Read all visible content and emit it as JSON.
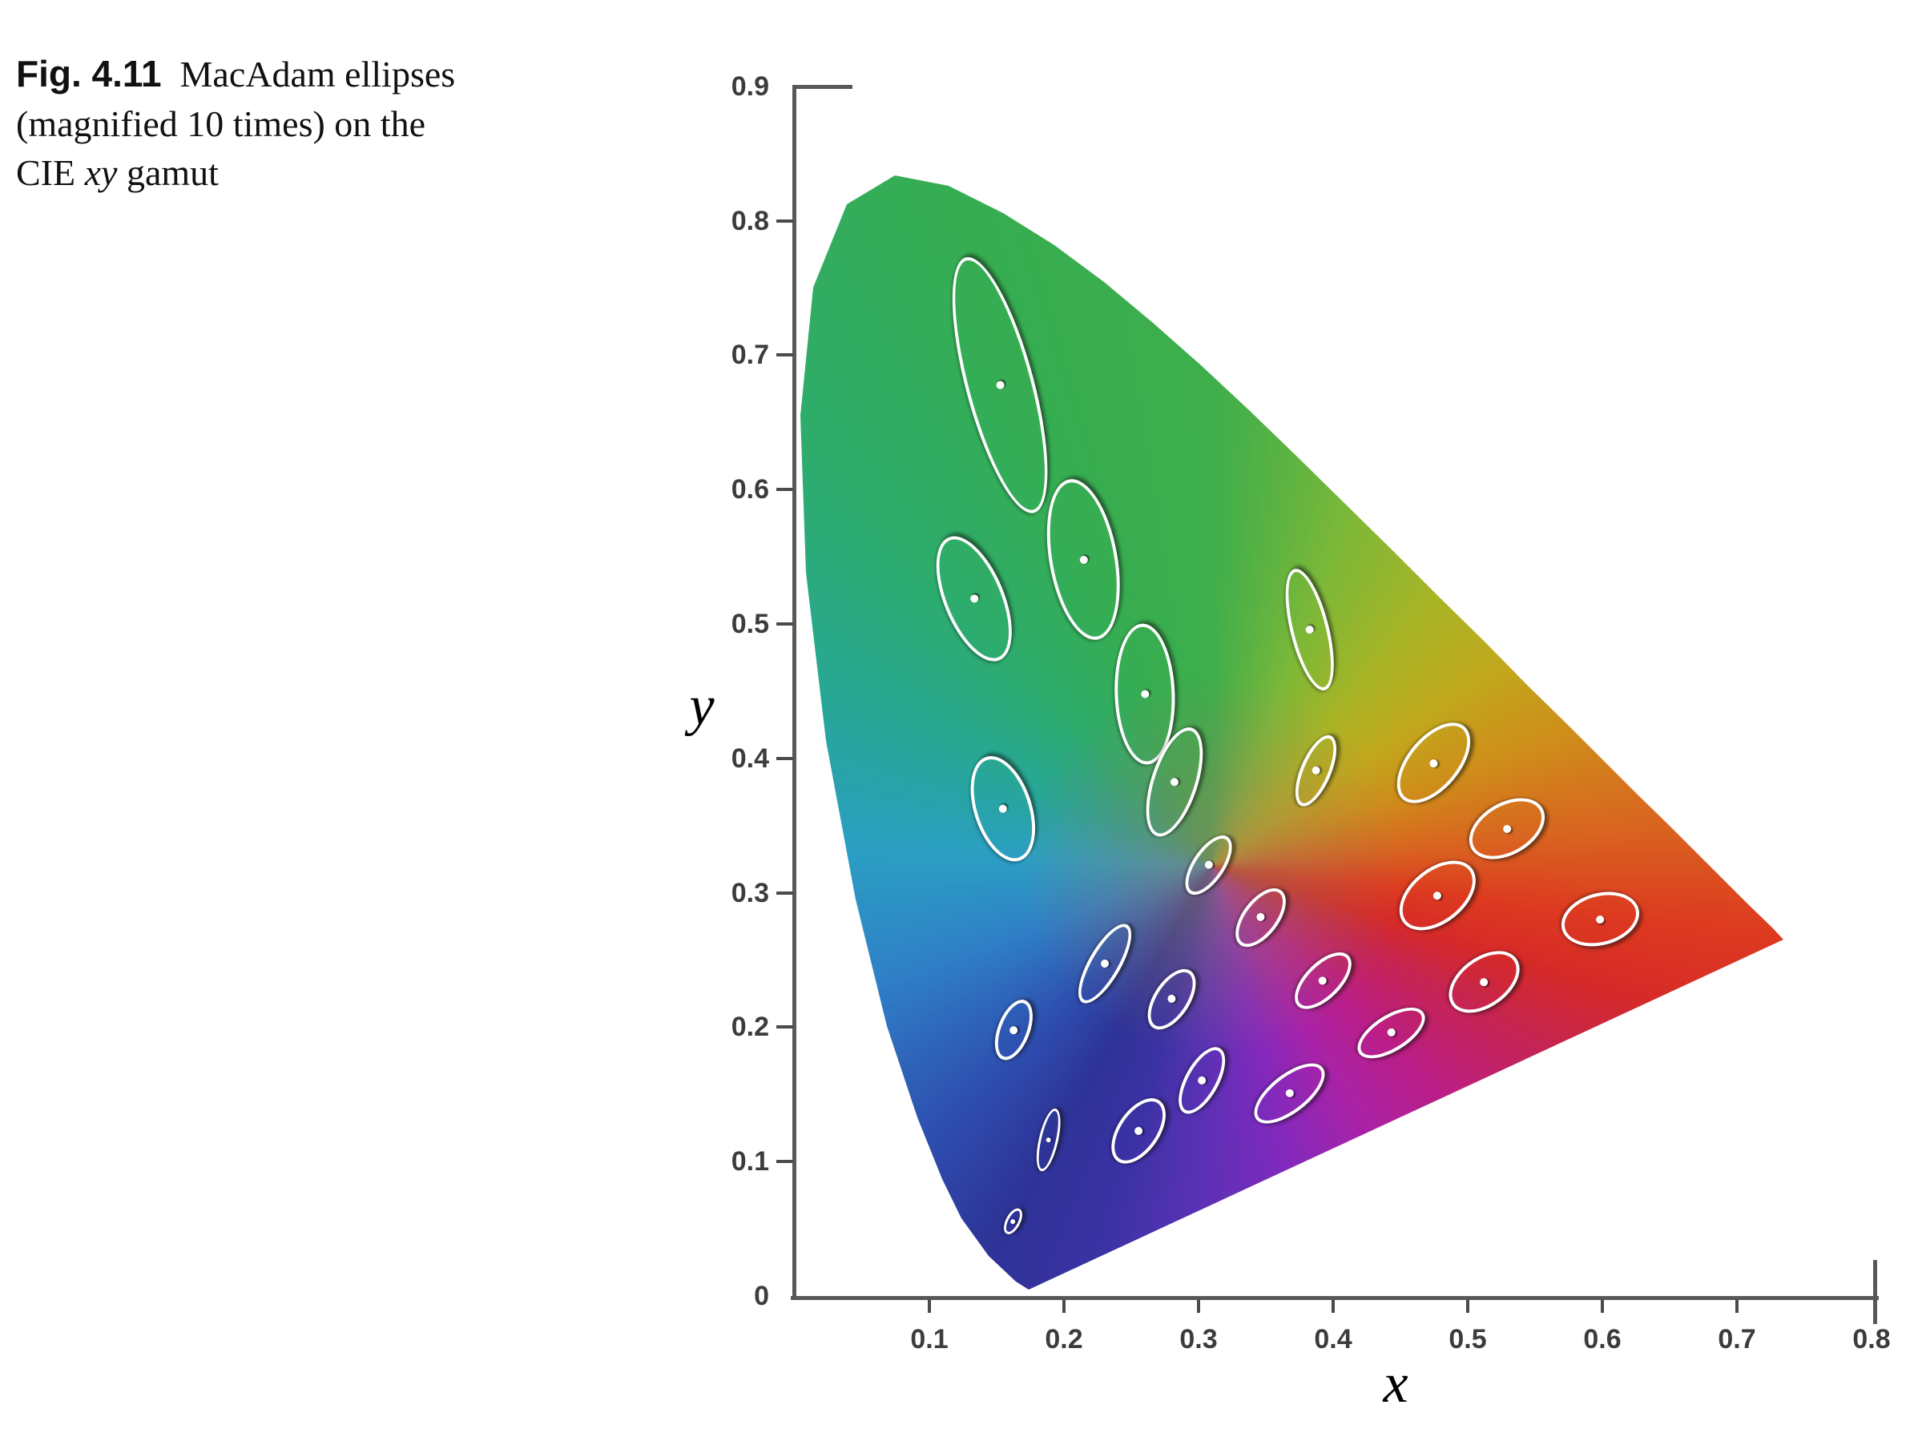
{
  "caption": {
    "label": "Fig. 4.11",
    "line1_rest": "MacAdam ellipses",
    "line2": "(magnified 10 times) on the",
    "line3_pre": "CIE ",
    "line3_italic": "xy",
    "line3_post": " gamut"
  },
  "axes": {
    "x_label": "x",
    "y_label": "y",
    "tick_color": "#3c3c3c",
    "axis_color": "#585858"
  },
  "chart_data": {
    "type": "scatter",
    "title": "MacAdam ellipses (magnified 10 times) on the CIE xy gamut",
    "xlabel": "x",
    "ylabel": "y",
    "xlim": [
      0,
      0.8
    ],
    "ylim": [
      0,
      0.9
    ],
    "grid": false,
    "x_ticks": [
      {
        "value": 0.1,
        "label": "0.1"
      },
      {
        "value": 0.2,
        "label": "0.2"
      },
      {
        "value": 0.3,
        "label": "0.3"
      },
      {
        "value": 0.4,
        "label": "0.4"
      },
      {
        "value": 0.5,
        "label": "0.5"
      },
      {
        "value": 0.6,
        "label": "0.6"
      },
      {
        "value": 0.7,
        "label": "0.7"
      },
      {
        "value": 0.8,
        "label": "0.8"
      }
    ],
    "y_ticks": [
      {
        "value": 0,
        "label": "0"
      },
      {
        "value": 0.1,
        "label": "0.1"
      },
      {
        "value": 0.2,
        "label": "0.2"
      },
      {
        "value": 0.3,
        "label": "0.3"
      },
      {
        "value": 0.4,
        "label": "0.4"
      },
      {
        "value": 0.5,
        "label": "0.5"
      },
      {
        "value": 0.6,
        "label": "0.6"
      },
      {
        "value": 0.7,
        "label": "0.7"
      },
      {
        "value": 0.8,
        "label": "0.8"
      },
      {
        "value": 0.9,
        "label": "0.9"
      }
    ],
    "magnification": 10,
    "ellipses": [
      {
        "x": 0.16,
        "y": 0.057,
        "a": 0.85,
        "b": 0.35,
        "theta": 62.5
      },
      {
        "x": 0.187,
        "y": 0.118,
        "a": 2.2,
        "b": 0.55,
        "theta": 77
      },
      {
        "x": 0.253,
        "y": 0.125,
        "a": 2.5,
        "b": 1.3,
        "theta": 55.5
      },
      {
        "x": 0.15,
        "y": 0.68,
        "a": 9.6,
        "b": 2.3,
        "theta": 105
      },
      {
        "x": 0.131,
        "y": 0.521,
        "a": 4.7,
        "b": 2.0,
        "theta": 112.5
      },
      {
        "x": 0.212,
        "y": 0.55,
        "a": 5.8,
        "b": 2.3,
        "theta": 100
      },
      {
        "x": 0.258,
        "y": 0.45,
        "a": 5.0,
        "b": 2.0,
        "theta": 92
      },
      {
        "x": 0.152,
        "y": 0.365,
        "a": 3.8,
        "b": 1.9,
        "theta": 108
      },
      {
        "x": 0.28,
        "y": 0.385,
        "a": 4.0,
        "b": 1.5,
        "theta": 72
      },
      {
        "x": 0.38,
        "y": 0.498,
        "a": 4.4,
        "b": 1.2,
        "theta": 104
      },
      {
        "x": 0.16,
        "y": 0.2,
        "a": 2.1,
        "b": 0.95,
        "theta": 69
      },
      {
        "x": 0.228,
        "y": 0.25,
        "a": 3.1,
        "b": 0.95,
        "theta": 60
      },
      {
        "x": 0.305,
        "y": 0.323,
        "a": 2.3,
        "b": 0.95,
        "theta": 56
      },
      {
        "x": 0.385,
        "y": 0.393,
        "a": 2.6,
        "b": 0.9,
        "theta": 67
      },
      {
        "x": 0.472,
        "y": 0.399,
        "a": 3.3,
        "b": 1.7,
        "theta": 50
      },
      {
        "x": 0.527,
        "y": 0.35,
        "a": 2.8,
        "b": 1.7,
        "theta": 30
      },
      {
        "x": 0.475,
        "y": 0.3,
        "a": 3.0,
        "b": 1.8,
        "theta": 39
      },
      {
        "x": 0.51,
        "y": 0.236,
        "a": 2.7,
        "b": 1.6,
        "theta": 36
      },
      {
        "x": 0.596,
        "y": 0.283,
        "a": 2.7,
        "b": 1.7,
        "theta": 15
      },
      {
        "x": 0.344,
        "y": 0.284,
        "a": 2.3,
        "b": 1.1,
        "theta": 53
      },
      {
        "x": 0.39,
        "y": 0.237,
        "a": 2.4,
        "b": 1.1,
        "theta": 45
      },
      {
        "x": 0.441,
        "y": 0.198,
        "a": 2.6,
        "b": 1.1,
        "theta": 32
      },
      {
        "x": 0.278,
        "y": 0.223,
        "a": 2.3,
        "b": 1.1,
        "theta": 57
      },
      {
        "x": 0.3,
        "y": 0.163,
        "a": 2.5,
        "b": 1.0,
        "theta": 61
      },
      {
        "x": 0.365,
        "y": 0.153,
        "a": 2.9,
        "b": 1.2,
        "theta": 38
      }
    ],
    "spectral_locus": [
      [
        0.1741,
        0.005
      ],
      [
        0.1644,
        0.0109
      ],
      [
        0.144,
        0.0297
      ],
      [
        0.1241,
        0.0578
      ],
      [
        0.1096,
        0.0868
      ],
      [
        0.0913,
        0.1327
      ],
      [
        0.0687,
        0.2007
      ],
      [
        0.0454,
        0.295
      ],
      [
        0.0235,
        0.4127
      ],
      [
        0.0082,
        0.5384
      ],
      [
        0.0039,
        0.6548
      ],
      [
        0.0139,
        0.7502
      ],
      [
        0.0389,
        0.812
      ],
      [
        0.0743,
        0.8338
      ],
      [
        0.1142,
        0.8262
      ],
      [
        0.1547,
        0.8059
      ],
      [
        0.1929,
        0.7816
      ],
      [
        0.2296,
        0.7543
      ],
      [
        0.2658,
        0.7243
      ],
      [
        0.3016,
        0.6923
      ],
      [
        0.3373,
        0.6589
      ],
      [
        0.3731,
        0.6245
      ],
      [
        0.4087,
        0.5896
      ],
      [
        0.4441,
        0.5547
      ],
      [
        0.4788,
        0.5202
      ],
      [
        0.5125,
        0.4866
      ],
      [
        0.5448,
        0.4544
      ],
      [
        0.5752,
        0.4242
      ],
      [
        0.6029,
        0.3965
      ],
      [
        0.627,
        0.3725
      ],
      [
        0.6482,
        0.3514
      ],
      [
        0.6658,
        0.334
      ],
      [
        0.6915,
        0.3083
      ],
      [
        0.7079,
        0.292
      ],
      [
        0.726,
        0.274
      ],
      [
        0.7347,
        0.2653
      ]
    ],
    "gamut_colors": {
      "center": [
        0.31,
        0.32
      ],
      "center_overlay": "rgba(150,122,96,0.6)",
      "conic_stops": [
        [
          0,
          "#3eae4b"
        ],
        [
          22,
          "#7eb837"
        ],
        [
          40,
          "#a9b425"
        ],
        [
          55,
          "#c1a81d"
        ],
        [
          70,
          "#cf8d1a"
        ],
        [
          85,
          "#d96420"
        ],
        [
          97,
          "#dd3a20"
        ],
        [
          107,
          "#d62a28"
        ],
        [
          118,
          "#c62450"
        ],
        [
          135,
          "#bb1e87"
        ],
        [
          150,
          "#a922a6"
        ],
        [
          166,
          "#8229bd"
        ],
        [
          182,
          "#5b31b5"
        ],
        [
          196,
          "#3b32a4"
        ],
        [
          210,
          "#2e3397"
        ],
        [
          225,
          "#2e4cae"
        ],
        [
          250,
          "#2f7ec6"
        ],
        [
          272,
          "#2b9ec4"
        ],
        [
          294,
          "#27a795"
        ],
        [
          316,
          "#2dac6c"
        ],
        [
          338,
          "#36ad52"
        ],
        [
          360,
          "#3eae4b"
        ]
      ]
    }
  }
}
